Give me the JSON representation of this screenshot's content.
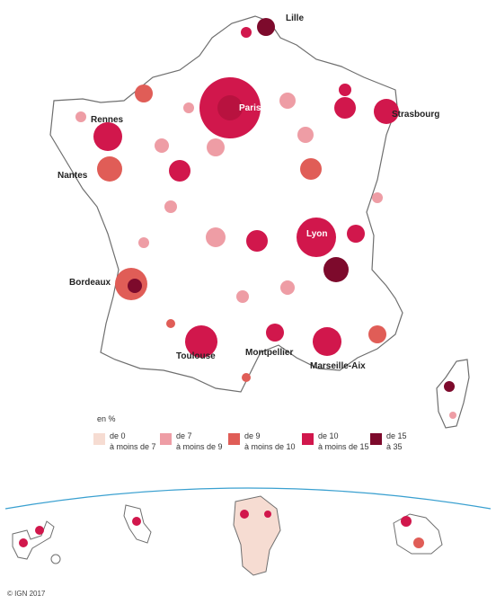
{
  "map": {
    "cities": [
      {
        "name": "Lille"
      },
      {
        "name": "Paris"
      },
      {
        "name": "Strasbourg"
      },
      {
        "name": "Rennes"
      },
      {
        "name": "Nantes"
      },
      {
        "name": "Lyon"
      },
      {
        "name": "Bordeaux"
      },
      {
        "name": "Toulouse"
      },
      {
        "name": "Montpellier"
      },
      {
        "name": "Marseille-Aix"
      }
    ]
  },
  "legend": {
    "title": "en %",
    "classes": [
      {
        "line1": "de 0",
        "line2": "à moins de 7",
        "color": "#f6dcd2"
      },
      {
        "line1": "de 7",
        "line2": "à moins de 9",
        "color": "#ee9da5"
      },
      {
        "line1": "de 9",
        "line2": "à moins de 10",
        "color": "#e05d57"
      },
      {
        "line1": "de 10",
        "line2": "à moins de 15",
        "color": "#d1174c"
      },
      {
        "line1": "de 15",
        "line2": "à 35",
        "color": "#7d0a2c"
      }
    ]
  },
  "credit": "© IGN 2017"
}
